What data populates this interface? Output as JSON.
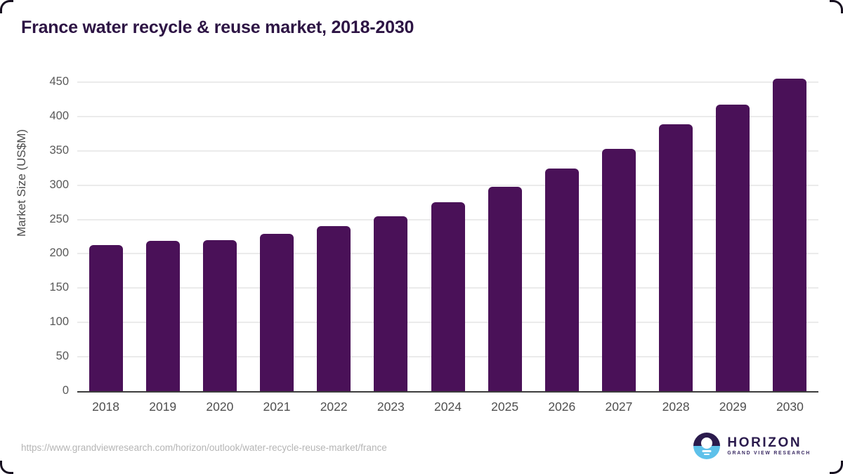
{
  "chart_data": {
    "type": "bar",
    "title": "France water recycle & reuse market, 2018-2030",
    "categories": [
      "2018",
      "2019",
      "2020",
      "2021",
      "2022",
      "2023",
      "2024",
      "2025",
      "2026",
      "2027",
      "2028",
      "2029",
      "2030"
    ],
    "values": [
      213,
      219,
      220,
      229,
      240,
      255,
      275,
      298,
      324,
      353,
      389,
      417,
      455
    ],
    "xlabel": "",
    "ylabel": "Market Size (US$M)",
    "ylim": [
      0,
      450
    ],
    "ytick_step": 50,
    "grid": true,
    "legend": "none",
    "bar_color": "#4a1158"
  },
  "colors": {
    "title": "#2d1444",
    "bar": "#4a1158",
    "axis": "#3c3c3c",
    "gridline": "#ebebeb",
    "tick_label": "#595959",
    "url_text": "#b5b5b5",
    "logo_dark": "#2b1b4d",
    "logo_blue": "#5ec1ea"
  },
  "footer": {
    "url": "https://www.grandviewresearch.com/horizon/outlook/water-recycle-reuse-market/france",
    "logo": {
      "name": "HORIZON",
      "tagline": "GRAND VIEW RESEARCH",
      "icon": "horizon-sun-over-water-icon"
    }
  }
}
